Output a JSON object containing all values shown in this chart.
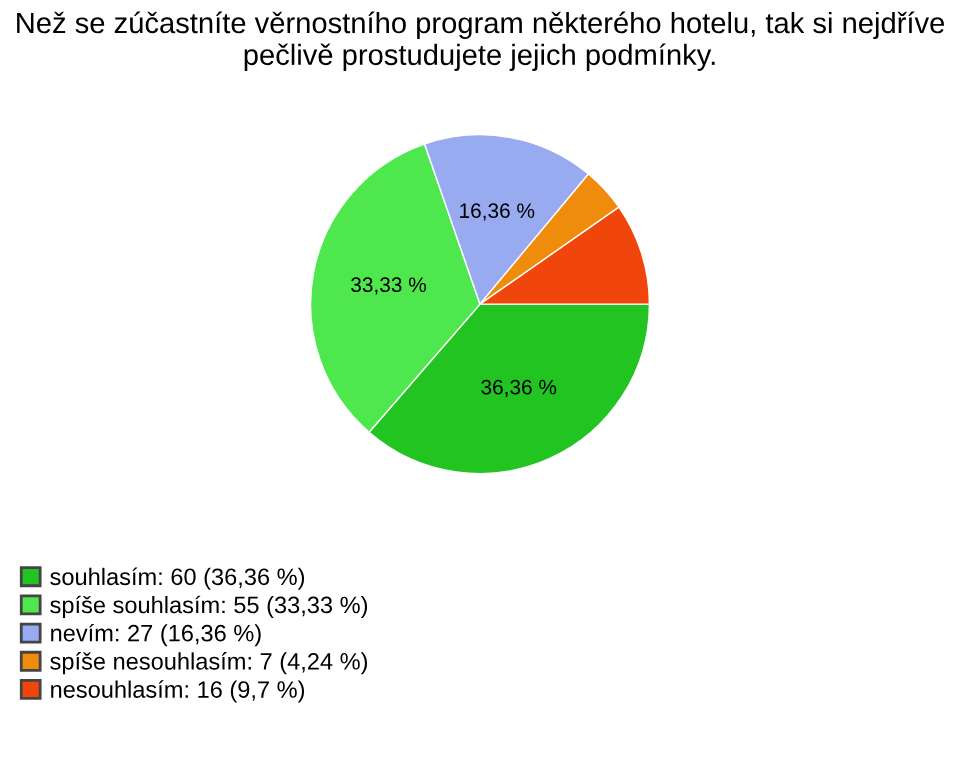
{
  "chart_data": {
    "type": "pie",
    "title": "Než se zúčastníte věrnostního program některého hotelu, tak si nejdříve pečlivě prostudujete jejich podmínky.",
    "categories": [
      "souhlasím: 60 (36,36 %)",
      "spíše souhlasím: 55 (33,33 %)",
      "nevím: 27 (16,36 %)",
      "spíše nesouhlasím: 7 (4,24 %)",
      "nesouhlasím: 16 (9,7 %)"
    ],
    "values": [
      36.36,
      33.33,
      16.36,
      4.24,
      9.7
    ],
    "value_labels": [
      "36,36 %",
      "33,33 %",
      "16,36 %",
      null,
      null
    ],
    "colors": [
      "#22c422",
      "#4ee84e",
      "#98aaf0",
      "#f08c0c",
      "#f0460c"
    ],
    "legend": "bottom left"
  }
}
